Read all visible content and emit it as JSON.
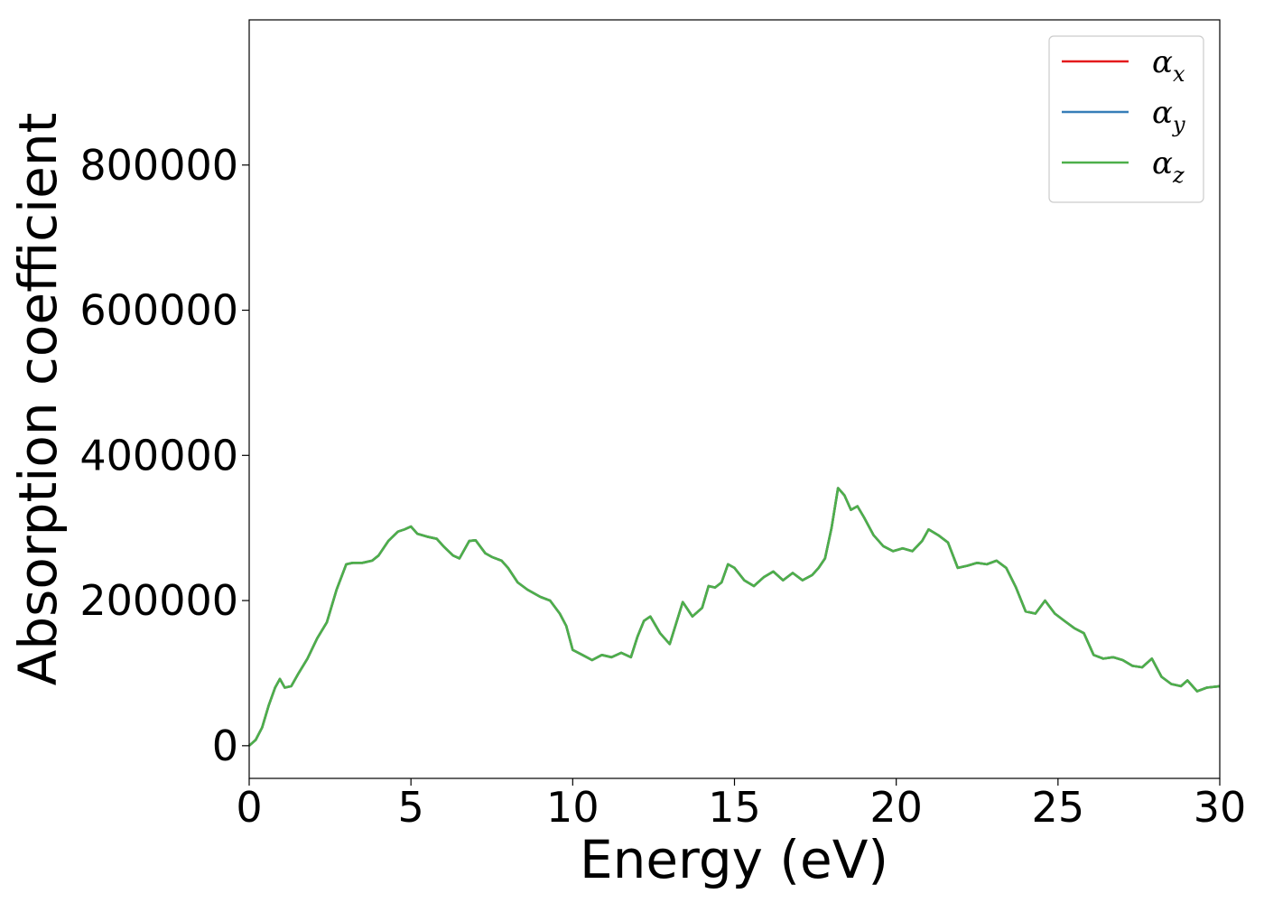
{
  "chart_data": {
    "type": "line",
    "title": "",
    "xlabel": "Energy (eV)",
    "ylabel": "Absorption coefficient",
    "xlim": [
      0,
      30
    ],
    "ylim": [
      -45000,
      1000000
    ],
    "xticks": [
      0,
      5,
      10,
      15,
      20,
      25,
      30
    ],
    "xtick_labels": [
      "0",
      "5",
      "10",
      "15",
      "20",
      "25",
      "30"
    ],
    "yticks": [
      0,
      200000,
      400000,
      600000,
      800000
    ],
    "ytick_labels": [
      "0",
      "200000",
      "400000",
      "600000",
      "800000"
    ],
    "grid": false,
    "legend_position": "top-right",
    "x": [
      0,
      0.2,
      0.4,
      0.6,
      0.8,
      0.95,
      1.1,
      1.3,
      1.5,
      1.8,
      2.1,
      2.4,
      2.7,
      3.0,
      3.2,
      3.5,
      3.8,
      4.0,
      4.3,
      4.6,
      4.8,
      5.0,
      5.2,
      5.5,
      5.8,
      6.0,
      6.3,
      6.5,
      6.8,
      7.0,
      7.3,
      7.5,
      7.8,
      8.0,
      8.3,
      8.6,
      9.0,
      9.3,
      9.6,
      9.8,
      10.0,
      10.3,
      10.6,
      10.9,
      11.2,
      11.5,
      11.8,
      12.0,
      12.2,
      12.4,
      12.7,
      13.0,
      13.4,
      13.7,
      14.0,
      14.2,
      14.4,
      14.6,
      14.8,
      15.0,
      15.3,
      15.6,
      15.9,
      16.2,
      16.5,
      16.8,
      17.1,
      17.4,
      17.6,
      17.8,
      18.0,
      18.2,
      18.4,
      18.6,
      18.8,
      19.0,
      19.3,
      19.6,
      19.9,
      20.2,
      20.5,
      20.8,
      21.0,
      21.3,
      21.6,
      21.9,
      22.2,
      22.5,
      22.8,
      23.1,
      23.4,
      23.7,
      24.0,
      24.3,
      24.6,
      24.9,
      25.2,
      25.5,
      25.8,
      26.1,
      26.4,
      26.7,
      27.0,
      27.3,
      27.6,
      27.9,
      28.2,
      28.5,
      28.8,
      29.0,
      29.3,
      29.6,
      30.0
    ],
    "series": [
      {
        "name": "α_x",
        "label_base": "α",
        "label_sub": "x",
        "color": "#e41a1c",
        "values": [
          0,
          8000,
          25000,
          55000,
          80000,
          92000,
          80000,
          82000,
          98000,
          120000,
          148000,
          170000,
          215000,
          250000,
          252000,
          252000,
          255000,
          262000,
          282000,
          295000,
          298000,
          302000,
          292000,
          288000,
          285000,
          275000,
          262000,
          258000,
          282000,
          283000,
          265000,
          260000,
          255000,
          245000,
          225000,
          215000,
          205000,
          200000,
          182000,
          165000,
          132000,
          125000,
          118000,
          125000,
          122000,
          128000,
          122000,
          150000,
          172000,
          178000,
          155000,
          140000,
          198000,
          178000,
          190000,
          220000,
          218000,
          225000,
          250000,
          245000,
          228000,
          220000,
          232000,
          240000,
          228000,
          238000,
          228000,
          235000,
          245000,
          258000,
          300000,
          355000,
          345000,
          325000,
          330000,
          315000,
          290000,
          275000,
          268000,
          272000,
          268000,
          282000,
          298000,
          290000,
          280000,
          245000,
          248000,
          252000,
          250000,
          255000,
          245000,
          218000,
          185000,
          182000,
          200000,
          182000,
          172000,
          162000,
          155000,
          125000,
          120000,
          122000,
          118000,
          110000,
          108000,
          120000,
          95000,
          85000,
          82000,
          90000,
          75000,
          80000,
          82000
        ]
      },
      {
        "name": "α_y",
        "label_base": "α",
        "label_sub": "y",
        "color": "#377eb8",
        "values": [
          0,
          8000,
          25000,
          55000,
          80000,
          92000,
          80000,
          82000,
          98000,
          120000,
          148000,
          170000,
          215000,
          250000,
          252000,
          252000,
          255000,
          262000,
          282000,
          295000,
          298000,
          302000,
          292000,
          288000,
          285000,
          275000,
          262000,
          258000,
          282000,
          283000,
          265000,
          260000,
          255000,
          245000,
          225000,
          215000,
          205000,
          200000,
          182000,
          165000,
          132000,
          125000,
          118000,
          125000,
          122000,
          128000,
          122000,
          150000,
          172000,
          178000,
          155000,
          140000,
          198000,
          178000,
          190000,
          220000,
          218000,
          225000,
          250000,
          245000,
          228000,
          220000,
          232000,
          240000,
          228000,
          238000,
          228000,
          235000,
          245000,
          258000,
          300000,
          355000,
          345000,
          325000,
          330000,
          315000,
          290000,
          275000,
          268000,
          272000,
          268000,
          282000,
          298000,
          290000,
          280000,
          245000,
          248000,
          252000,
          250000,
          255000,
          245000,
          218000,
          185000,
          182000,
          200000,
          182000,
          172000,
          162000,
          155000,
          125000,
          120000,
          122000,
          118000,
          110000,
          108000,
          120000,
          95000,
          85000,
          82000,
          90000,
          75000,
          80000,
          82000
        ]
      },
      {
        "name": "α_z",
        "label_base": "α",
        "label_sub": "z",
        "color": "#4daf4a",
        "values": [
          0,
          8000,
          25000,
          55000,
          80000,
          92000,
          80000,
          82000,
          98000,
          120000,
          148000,
          170000,
          215000,
          250000,
          252000,
          252000,
          255000,
          262000,
          282000,
          295000,
          298000,
          302000,
          292000,
          288000,
          285000,
          275000,
          262000,
          258000,
          282000,
          283000,
          265000,
          260000,
          255000,
          245000,
          225000,
          215000,
          205000,
          200000,
          182000,
          165000,
          132000,
          125000,
          118000,
          125000,
          122000,
          128000,
          122000,
          150000,
          172000,
          178000,
          155000,
          140000,
          198000,
          178000,
          190000,
          220000,
          218000,
          225000,
          250000,
          245000,
          228000,
          220000,
          232000,
          240000,
          228000,
          238000,
          228000,
          235000,
          245000,
          258000,
          300000,
          355000,
          345000,
          325000,
          330000,
          315000,
          290000,
          275000,
          268000,
          272000,
          268000,
          282000,
          298000,
          290000,
          280000,
          245000,
          248000,
          252000,
          250000,
          255000,
          245000,
          218000,
          185000,
          182000,
          200000,
          182000,
          172000,
          162000,
          155000,
          125000,
          120000,
          122000,
          118000,
          110000,
          108000,
          120000,
          95000,
          85000,
          82000,
          90000,
          75000,
          80000,
          82000
        ]
      }
    ]
  }
}
